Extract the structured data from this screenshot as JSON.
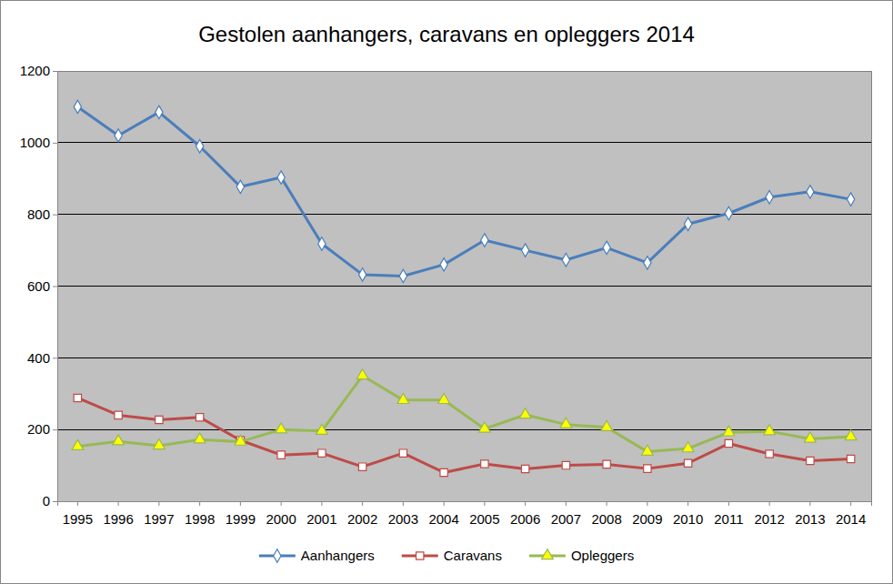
{
  "chart_data": {
    "type": "line",
    "title": "Gestolen aanhangers, caravans en opleggers 2014",
    "categories": [
      "1995",
      "1996",
      "1997",
      "1998",
      "1999",
      "2000",
      "2001",
      "2002",
      "2003",
      "2004",
      "2005",
      "2006",
      "2007",
      "2008",
      "2009",
      "2010",
      "2011",
      "2012",
      "2013",
      "2014"
    ],
    "series": [
      {
        "name": "Aanhangers",
        "color": "#4a7ebb",
        "marker": "diamond",
        "values": [
          1100,
          1020,
          1085,
          990,
          877,
          903,
          718,
          632,
          628,
          660,
          728,
          700,
          673,
          707,
          665,
          773,
          803,
          848,
          863,
          842
        ]
      },
      {
        "name": "Caravans",
        "color": "#be4b48",
        "marker": "square",
        "values": [
          288,
          240,
          227,
          234,
          170,
          129,
          134,
          96,
          134,
          80,
          104,
          90,
          100,
          103,
          91,
          106,
          161,
          132,
          113,
          118
        ]
      },
      {
        "name": "Opleggers",
        "color": "#98b954",
        "marker": "triangle",
        "values": [
          153,
          167,
          155,
          172,
          166,
          200,
          196,
          350,
          282,
          282,
          202,
          241,
          214,
          206,
          138,
          147,
          192,
          195,
          174,
          180
        ]
      }
    ],
    "ylim": [
      0,
      1200
    ],
    "yticks": [
      0,
      200,
      400,
      600,
      800,
      1000,
      1200
    ],
    "grid": true,
    "legend": "bottom"
  }
}
